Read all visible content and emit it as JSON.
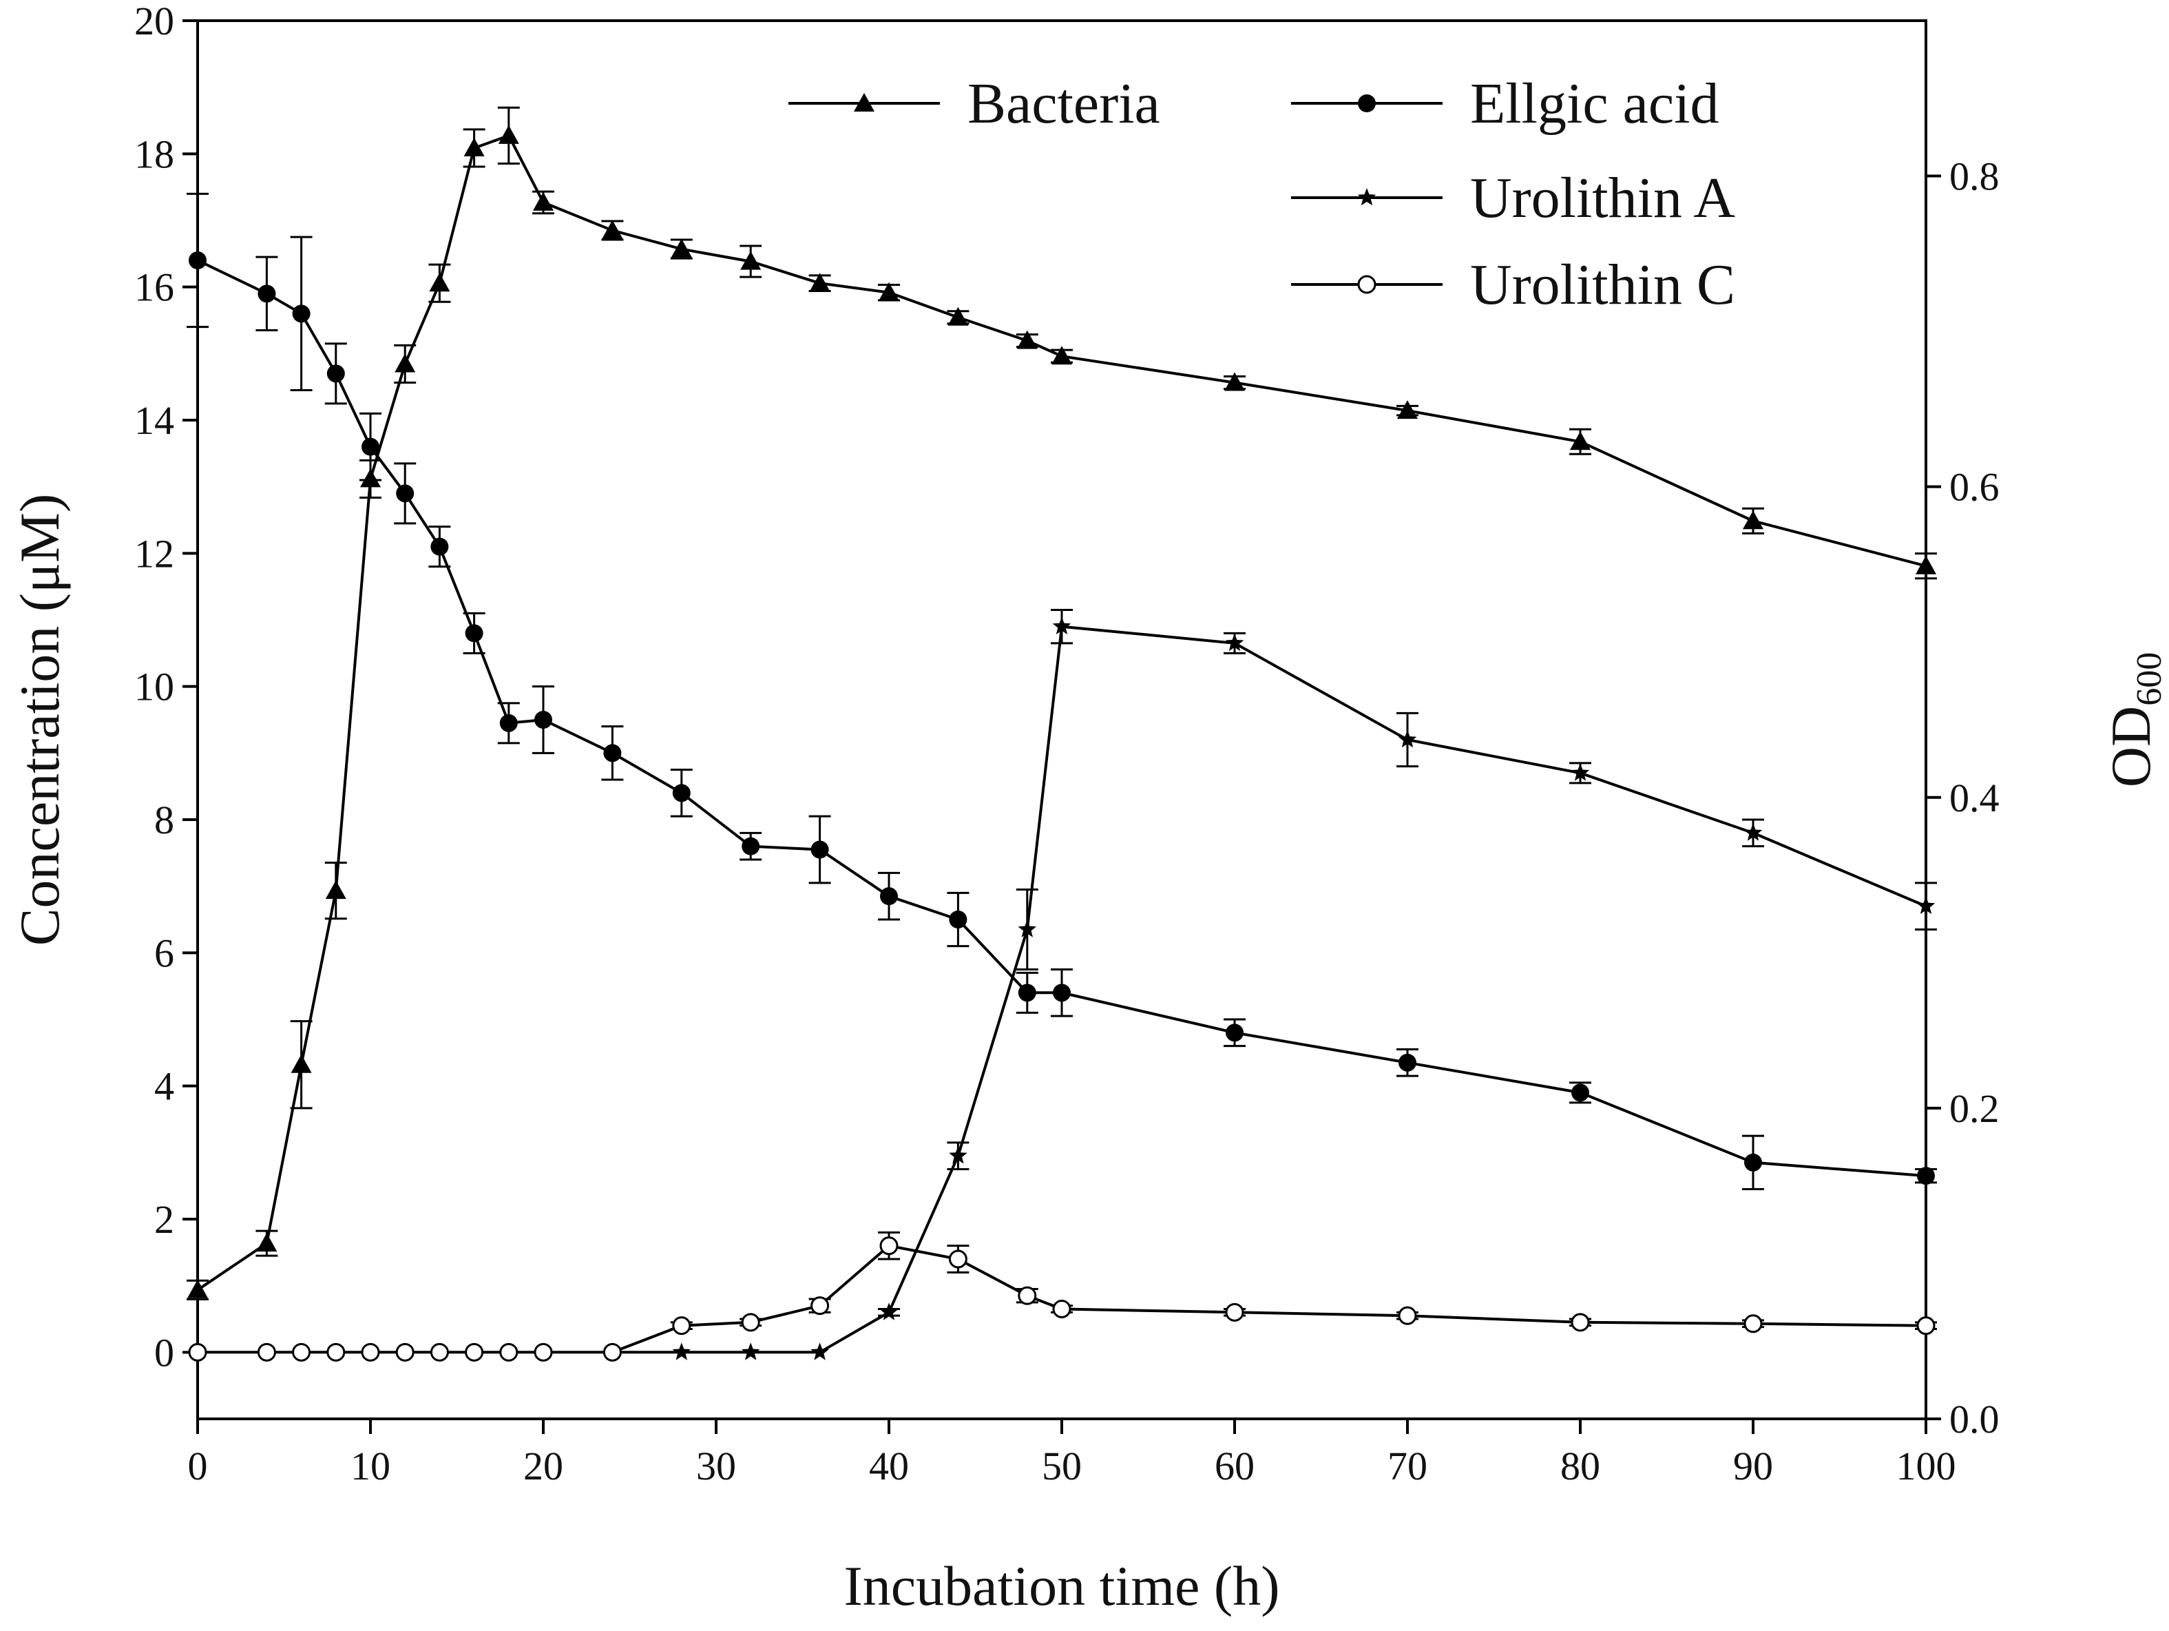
{
  "chart_data": {
    "type": "line",
    "xlabel": "Incubation time (h)",
    "ylabel": "Concentration (μM)",
    "y2label_main": "OD",
    "y2label_sub": "600",
    "xlim": [
      0,
      100
    ],
    "ylim": [
      -1,
      20
    ],
    "y2lim": [
      0.0,
      0.9
    ],
    "x_ticks": [
      0,
      10,
      20,
      30,
      40,
      50,
      60,
      70,
      80,
      90,
      100
    ],
    "y_ticks": [
      0,
      2,
      4,
      6,
      8,
      10,
      12,
      14,
      16,
      18,
      20
    ],
    "y2_ticks": [
      "0.0",
      "0.2",
      "0.4",
      "0.6",
      "0.8"
    ],
    "legend_position": "top-right",
    "series": [
      {
        "name": "Bacteria",
        "axis": "right",
        "marker": "triangle",
        "x": [
          0,
          4,
          6,
          8,
          10,
          12,
          14,
          16,
          18,
          20,
          24,
          28,
          32,
          36,
          40,
          44,
          48,
          50,
          60,
          70,
          80,
          90,
          100
        ],
        "y": [
          0.083,
          0.113,
          0.228,
          0.34,
          0.605,
          0.679,
          0.731,
          0.818,
          0.826,
          0.783,
          0.765,
          0.753,
          0.745,
          0.731,
          0.725,
          0.709,
          0.694,
          0.684,
          0.667,
          0.649,
          0.629,
          0.578,
          0.549
        ],
        "err": [
          0.006,
          0.008,
          0.028,
          0.018,
          0.012,
          0.012,
          0.012,
          0.012,
          0.018,
          0.007,
          0.006,
          0.006,
          0.01,
          0.005,
          0.005,
          0.004,
          0.004,
          0.004,
          0.004,
          0.003,
          0.008,
          0.008,
          0.008
        ]
      },
      {
        "name": "Ellgic acid",
        "axis": "left",
        "marker": "circle",
        "x": [
          0,
          4,
          6,
          8,
          10,
          12,
          14,
          16,
          18,
          20,
          24,
          28,
          32,
          36,
          40,
          44,
          48,
          50,
          60,
          70,
          80,
          90,
          100
        ],
        "y": [
          16.4,
          15.9,
          15.6,
          14.7,
          13.6,
          12.9,
          12.1,
          10.8,
          9.45,
          9.5,
          9.0,
          8.4,
          7.6,
          7.55,
          6.85,
          6.5,
          5.4,
          5.4,
          4.8,
          4.35,
          3.9,
          2.85,
          2.65
        ],
        "err": [
          1.0,
          0.55,
          1.15,
          0.45,
          0.5,
          0.45,
          0.3,
          0.3,
          0.3,
          0.5,
          0.4,
          0.35,
          0.2,
          0.5,
          0.35,
          0.4,
          0.3,
          0.35,
          0.2,
          0.2,
          0.15,
          0.4,
          0.1
        ]
      },
      {
        "name": "Urolithin A",
        "axis": "left",
        "marker": "star",
        "x": [
          24,
          28,
          32,
          36,
          40,
          44,
          48,
          50,
          60,
          70,
          80,
          90,
          100
        ],
        "y": [
          0.0,
          0.0,
          0.0,
          0.0,
          0.6,
          2.95,
          6.35,
          10.9,
          10.65,
          9.2,
          8.7,
          7.8,
          6.7
        ],
        "err": [
          0.0,
          0.0,
          0.0,
          0.0,
          0.05,
          0.2,
          0.6,
          0.25,
          0.15,
          0.4,
          0.15,
          0.2,
          0.35
        ]
      },
      {
        "name": "Urolithin C",
        "axis": "left",
        "marker": "open-circle",
        "x": [
          0,
          4,
          6,
          8,
          10,
          12,
          14,
          16,
          18,
          20,
          24,
          28,
          32,
          36,
          40,
          44,
          48,
          50,
          60,
          70,
          80,
          90,
          100
        ],
        "y": [
          0.0,
          0.0,
          0.0,
          0.0,
          0.0,
          0.0,
          0.0,
          0.0,
          0.0,
          0.0,
          0.0,
          0.4,
          0.45,
          0.7,
          1.6,
          1.4,
          0.85,
          0.65,
          0.6,
          0.55,
          0.45,
          0.43,
          0.4
        ],
        "err": [
          0.0,
          0.0,
          0.0,
          0.0,
          0.0,
          0.0,
          0.0,
          0.0,
          0.0,
          0.0,
          0.0,
          0.05,
          0.05,
          0.1,
          0.2,
          0.2,
          0.1,
          0.05,
          0.05,
          0.05,
          0.05,
          0.05,
          0.05
        ]
      }
    ]
  }
}
